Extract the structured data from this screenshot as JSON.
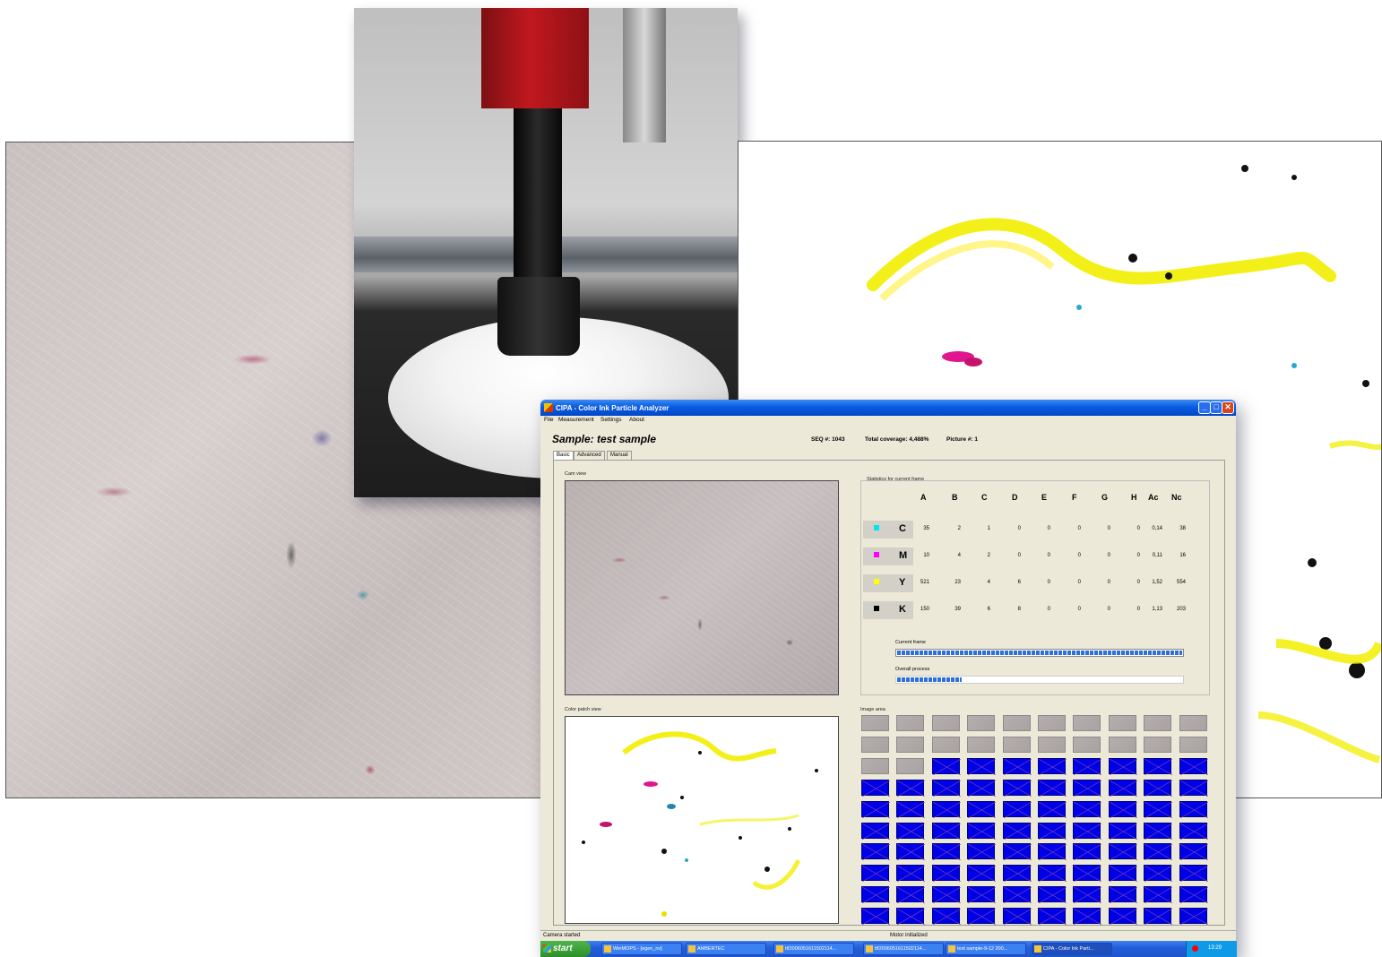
{
  "window": {
    "title": "CIPA - Color Ink Particle Analyzer",
    "minimize_glyph": "_",
    "maximize_glyph": "□",
    "close_glyph": "✕"
  },
  "menu": [
    "File",
    "Measurement",
    "Settings",
    "About"
  ],
  "header": {
    "sample_title": "Sample: test sample",
    "seq": "SEQ #:  1043",
    "coverage": "Total coverage: 4,488%",
    "picture": "Picture #: 1"
  },
  "tabs": [
    {
      "label": "Basic",
      "active": true
    },
    {
      "label": "Advanced",
      "active": false
    },
    {
      "label": "Manual",
      "active": false
    }
  ],
  "panels": {
    "cam_view": "Cam view",
    "color_patch_view": "Color patch view",
    "stats": "Statistics for current frame",
    "image_area": "Image area"
  },
  "stats": {
    "columns": [
      "A",
      "B",
      "C",
      "D",
      "E",
      "F",
      "G",
      "H",
      "Ac",
      "Nc"
    ],
    "rows": [
      {
        "label": "C",
        "color": "#00e5ee",
        "values": [
          "35",
          "2",
          "1",
          "0",
          "0",
          "0",
          "0",
          "0",
          "0,14",
          "38"
        ]
      },
      {
        "label": "M",
        "color": "#ff00ff",
        "values": [
          "10",
          "4",
          "2",
          "0",
          "0",
          "0",
          "0",
          "0",
          "0,11",
          "16"
        ]
      },
      {
        "label": "Y",
        "color": "#ffff00",
        "values": [
          "521",
          "23",
          "4",
          "6",
          "0",
          "0",
          "0",
          "0",
          "1,52",
          "554"
        ]
      },
      {
        "label": "K",
        "color": "#000000",
        "values": [
          "150",
          "39",
          "6",
          "8",
          "0",
          "0",
          "0",
          "0",
          "1,13",
          "203"
        ]
      }
    ]
  },
  "progress": {
    "current_frame_label": "Current frame",
    "current_frame_value": 1.0,
    "overall_label": "Overall process",
    "overall_value": 0.23
  },
  "image_area": {
    "cols": 10,
    "rows": 10,
    "processed_tiles": 22,
    "processed_color": "#b5aeae",
    "pending_color": "#0000e6"
  },
  "status": {
    "left": "Camera started",
    "right": "Motor initialized"
  },
  "taskbar": {
    "start": "start",
    "items": [
      {
        "label": "WinMOPS - [egen_nv]",
        "active": false
      },
      {
        "label": "AMBERTEC",
        "active": false
      },
      {
        "label": "ttf2006051611502114...",
        "active": false
      },
      {
        "label": "ttf2006051611502114...",
        "active": false
      },
      {
        "label": "test sample-9-12 200...",
        "active": false
      },
      {
        "label": "CIPA - Color Ink Parti...",
        "active": true
      }
    ],
    "clock": "13:29"
  }
}
